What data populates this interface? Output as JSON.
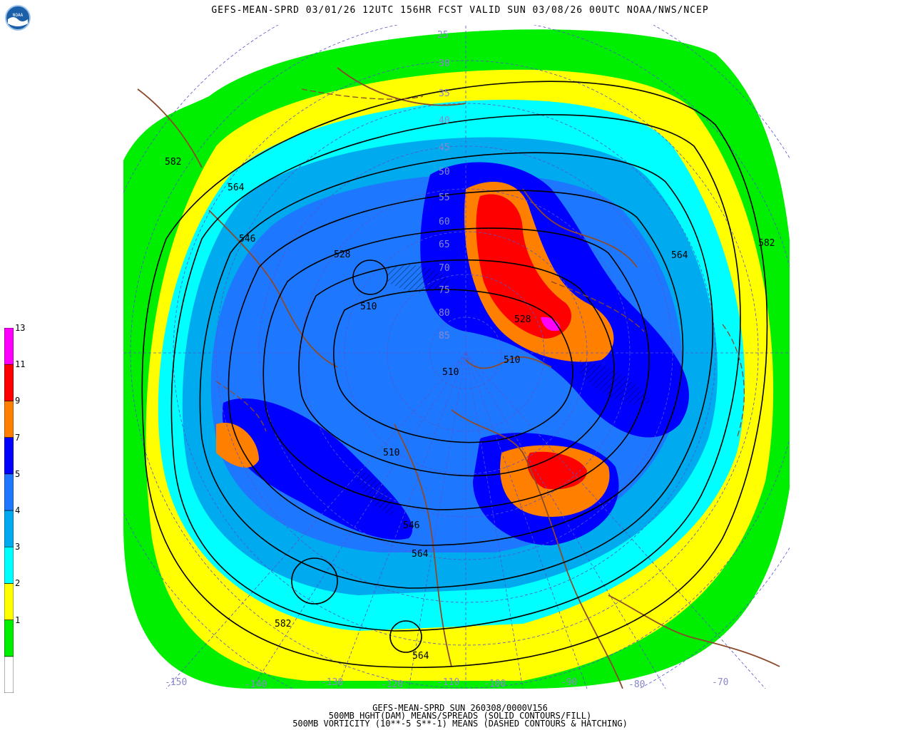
{
  "header": {
    "title": "GEFS-MEAN-SPRD 03/01/26 12UTC 156HR FCST VALID SUN 03/08/26 00UTC NOAA/NWS/NCEP"
  },
  "logo": {
    "text": "NOAA",
    "icon": "noaa-logo-icon"
  },
  "legend": {
    "bins": [
      {
        "color": "#ffffff",
        "label": ""
      },
      {
        "color": "#00ee00",
        "label": "1"
      },
      {
        "color": "#ffff00",
        "label": "2"
      },
      {
        "color": "#00ffff",
        "label": "3"
      },
      {
        "color": "#00aaee",
        "label": "4"
      },
      {
        "color": "#1e78ff",
        "label": "5"
      },
      {
        "color": "#0000ff",
        "label": "7"
      },
      {
        "color": "#ff7f00",
        "label": "9"
      },
      {
        "color": "#ff0000",
        "label": "11"
      },
      {
        "color": "#ff00ff",
        "label": "13"
      }
    ]
  },
  "map": {
    "contour_labels": [
      "582",
      "564",
      "546",
      "528",
      "510",
      "528",
      "510",
      "510",
      "510",
      "546",
      "564",
      "582",
      "564",
      "582",
      "564"
    ],
    "longitude_labels": [
      "-150",
      "-140",
      "-130",
      "-120",
      "-110",
      "-100",
      "-90",
      "-80",
      "-70"
    ],
    "latitude_labels": [
      "25",
      "30",
      "35",
      "40",
      "45",
      "50",
      "55",
      "60",
      "65",
      "70",
      "75",
      "80",
      "85"
    ]
  },
  "footer": {
    "line1": "GEFS-MEAN-SPRD SUN 260308/0000V156",
    "line2": "500MB HGHT(DAM) MEANS/SPREADS (SOLID CONTOURS/FILL)",
    "line3": "500MB VORTICITY (10**-5 S**-1) MEANS (DASHED CONTOURS & HATCHING)"
  }
}
